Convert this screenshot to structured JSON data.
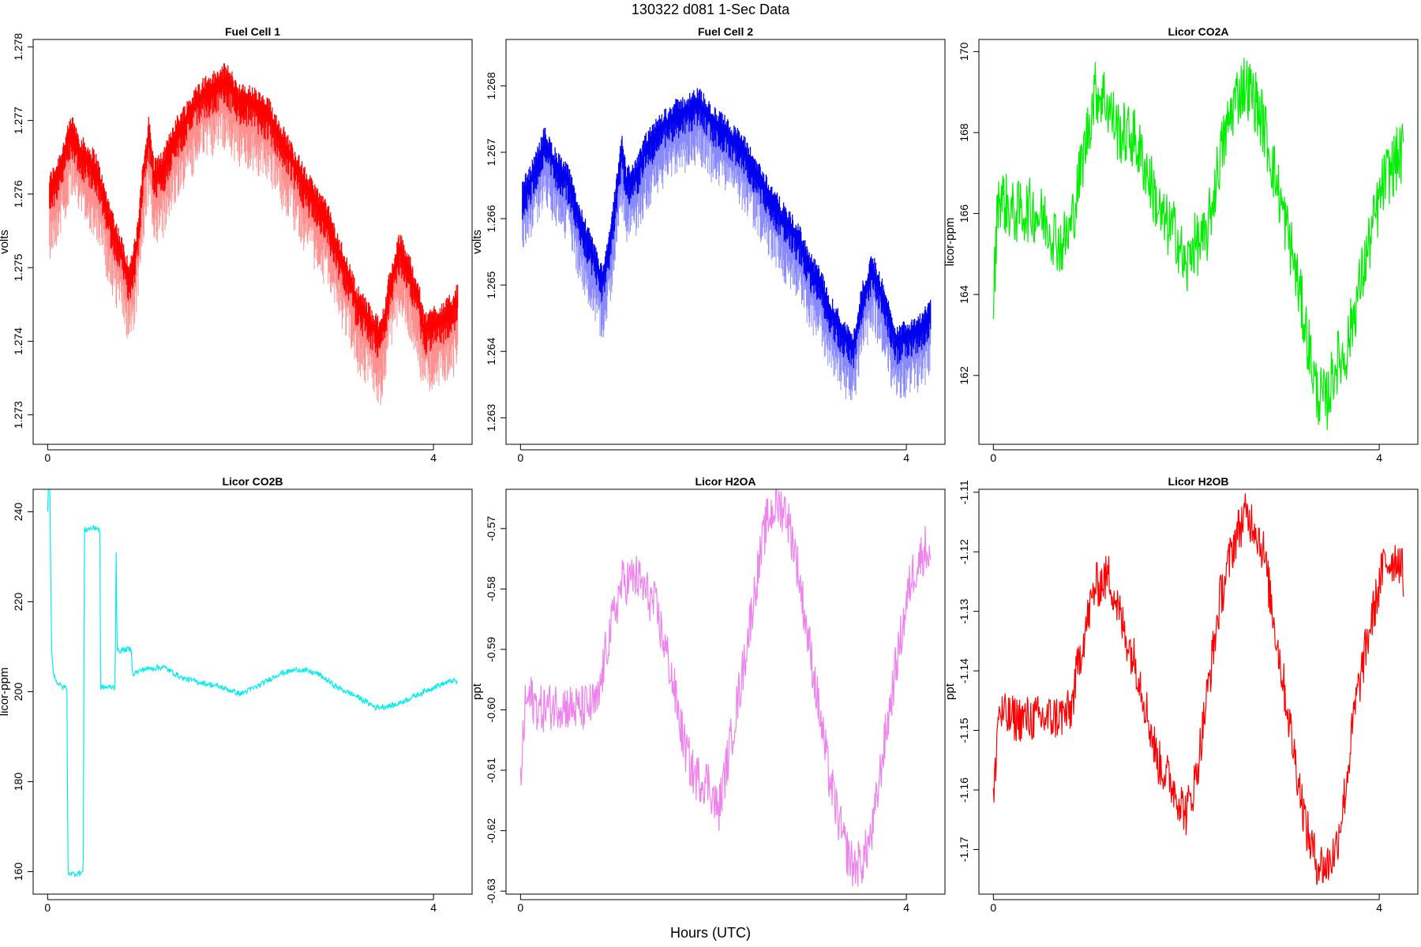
{
  "figure": {
    "title": "130322   d081   1-Sec Data",
    "xlabel": "Hours (UTC)"
  },
  "chart_data": [
    {
      "type": "line",
      "title": "Fuel Cell 1",
      "xlabel": "",
      "ylabel": "volts",
      "xlim": [
        -0.15,
        4.4
      ],
      "ylim": [
        1.2726,
        1.2781
      ],
      "xticks": [
        0,
        4
      ],
      "yticks": [
        1.273,
        1.274,
        1.275,
        1.276,
        1.277,
        1.278
      ],
      "ytick_labels": [
        "1.273",
        "1.274",
        "1.275",
        "1.276",
        "1.277",
        "1.278"
      ],
      "series": [
        {
          "color": "#ff0000",
          "noise_color": "#ff9090",
          "x": [
            0.02,
            0.1,
            0.25,
            0.35,
            0.5,
            0.6,
            0.75,
            0.85,
            0.92,
            1.0,
            1.05,
            1.1,
            1.2,
            1.3,
            1.45,
            1.6,
            1.75,
            1.85,
            2.0,
            2.1,
            2.3,
            2.5,
            2.7,
            2.9,
            3.0,
            3.1,
            3.2,
            3.35,
            3.45,
            3.55,
            3.65,
            3.75,
            3.85,
            3.9,
            4.0,
            4.15,
            4.25
          ],
          "y": [
            1.276,
            1.2762,
            1.2768,
            1.2765,
            1.2763,
            1.2758,
            1.2752,
            1.2748,
            1.2752,
            1.2763,
            1.2768,
            1.2762,
            1.2763,
            1.2767,
            1.277,
            1.2773,
            1.2774,
            1.2775,
            1.2772,
            1.2772,
            1.277,
            1.2765,
            1.276,
            1.2756,
            1.2752,
            1.2749,
            1.2745,
            1.2742,
            1.274,
            1.2747,
            1.2752,
            1.2749,
            1.2745,
            1.2741,
            1.2742,
            1.2743,
            1.2745
          ],
          "noise_down": 0.0009,
          "noise_up": 0.0003
        }
      ]
    },
    {
      "type": "line",
      "title": "Fuel Cell 2",
      "xlabel": "",
      "ylabel": "volts",
      "xlim": [
        -0.15,
        4.4
      ],
      "ylim": [
        1.2626,
        1.2687
      ],
      "xticks": [
        0,
        4
      ],
      "yticks": [
        1.263,
        1.264,
        1.265,
        1.266,
        1.267,
        1.268
      ],
      "ytick_labels": [
        "1.263",
        "1.264",
        "1.265",
        "1.266",
        "1.267",
        "1.268"
      ],
      "series": [
        {
          "color": "#0000ee",
          "noise_color": "#8a8aff",
          "x": [
            0.02,
            0.1,
            0.25,
            0.35,
            0.5,
            0.6,
            0.75,
            0.85,
            0.92,
            1.0,
            1.05,
            1.1,
            1.2,
            1.3,
            1.45,
            1.6,
            1.75,
            1.85,
            2.0,
            2.1,
            2.3,
            2.5,
            2.7,
            2.9,
            3.0,
            3.1,
            3.2,
            3.35,
            3.45,
            3.55,
            3.65,
            3.75,
            3.85,
            3.9,
            4.0,
            4.15,
            4.25
          ],
          "y": [
            1.2663,
            1.2665,
            1.2671,
            1.2668,
            1.2665,
            1.266,
            1.2654,
            1.265,
            1.2655,
            1.2664,
            1.267,
            1.2665,
            1.2666,
            1.267,
            1.2673,
            1.2675,
            1.2676,
            1.2677,
            1.2674,
            1.2673,
            1.267,
            1.2665,
            1.266,
            1.2656,
            1.2652,
            1.265,
            1.2646,
            1.2642,
            1.264,
            1.2648,
            1.2652,
            1.2648,
            1.2643,
            1.2641,
            1.2642,
            1.2643,
            1.2645
          ],
          "noise_down": 0.0009,
          "noise_up": 0.0003
        }
      ]
    },
    {
      "type": "line",
      "title": "Licor CO2A",
      "xlabel": "",
      "ylabel": "licor-ppm",
      "xlim": [
        -0.15,
        4.4
      ],
      "ylim": [
        160.3,
        170.3
      ],
      "xticks": [
        0,
        4
      ],
      "yticks": [
        162,
        164,
        166,
        168,
        170
      ],
      "ytick_labels": [
        "162",
        "164",
        "166",
        "168",
        "170"
      ],
      "series": [
        {
          "color": "#00ee00",
          "x": [
            0.0,
            0.05,
            0.2,
            0.4,
            0.55,
            0.7,
            0.8,
            0.9,
            1.05,
            1.15,
            1.3,
            1.45,
            1.6,
            1.75,
            1.9,
            2.0,
            2.05,
            2.2,
            2.35,
            2.5,
            2.6,
            2.7,
            2.8,
            2.95,
            3.1,
            3.25,
            3.35,
            3.45,
            3.55,
            3.65,
            3.75,
            3.9,
            4.05,
            4.2,
            4.25
          ],
          "y": [
            163.8,
            166.5,
            166.0,
            166.1,
            165.8,
            165.2,
            165.6,
            167.0,
            169.0,
            168.9,
            168.0,
            167.9,
            167.0,
            165.8,
            165.5,
            164.5,
            165.2,
            165.3,
            167.4,
            168.8,
            169.2,
            168.9,
            168.2,
            166.6,
            165.0,
            163.0,
            161.6,
            161.3,
            162.3,
            162.5,
            163.7,
            165.3,
            166.8,
            167.4,
            167.5
          ],
          "noise": 0.8
        }
      ]
    },
    {
      "type": "line",
      "title": "Licor CO2B",
      "xlabel": "",
      "ylabel": "licor-ppm",
      "xlim": [
        -0.15,
        4.4
      ],
      "ylim": [
        155,
        245
      ],
      "xticks": [
        0,
        4
      ],
      "yticks": [
        160,
        180,
        200,
        220,
        240
      ],
      "ytick_labels": [
        "160",
        "180",
        "200",
        "220",
        "240"
      ],
      "series": [
        {
          "color": "#00eeee",
          "x": [
            0.0,
            0.02,
            0.04,
            0.06,
            0.1,
            0.15,
            0.2,
            0.21,
            0.25,
            0.35,
            0.37,
            0.38,
            0.5,
            0.54,
            0.55,
            0.65,
            0.7,
            0.71,
            0.72,
            0.85,
            0.87,
            0.88,
            1.0,
            1.2,
            1.4,
            1.6,
            1.8,
            2.0,
            2.2,
            2.4,
            2.6,
            2.8,
            3.0,
            3.2,
            3.4,
            3.6,
            3.8,
            4.0,
            4.2,
            4.25
          ],
          "y": [
            240,
            252,
            210,
            204,
            202,
            201,
            201,
            160,
            159.5,
            159.8,
            160,
            236,
            236.5,
            236,
            201,
            201,
            201,
            232,
            209,
            209.5,
            209,
            204,
            205,
            205.5,
            203,
            202,
            201,
            199.5,
            201.5,
            204,
            205,
            204,
            201,
            199,
            196.5,
            197,
            199,
            201,
            202.5,
            202
          ],
          "noise": 0.6
        }
      ]
    },
    {
      "type": "line",
      "title": "Licor H2OA",
      "xlabel": "",
      "ylabel": "ppt",
      "xlim": [
        -0.15,
        4.4
      ],
      "ylim": [
        -0.6305,
        -0.5635
      ],
      "xticks": [
        0,
        4
      ],
      "yticks": [
        -0.63,
        -0.62,
        -0.61,
        -0.6,
        -0.59,
        -0.58,
        -0.57
      ],
      "ytick_labels": [
        "-0.63",
        "-0.62",
        "-0.61",
        "-0.60",
        "-0.59",
        "-0.58",
        "-0.57"
      ],
      "series": [
        {
          "color": "#ee82ee",
          "x": [
            0.0,
            0.05,
            0.1,
            0.2,
            0.4,
            0.6,
            0.8,
            0.9,
            1.05,
            1.2,
            1.4,
            1.55,
            1.7,
            1.8,
            1.95,
            2.05,
            2.15,
            2.3,
            2.45,
            2.55,
            2.65,
            2.75,
            2.85,
            3.0,
            3.2,
            3.35,
            3.45,
            3.55,
            3.65,
            3.75,
            3.9,
            4.05,
            4.2,
            4.25
          ],
          "y": [
            -0.612,
            -0.599,
            -0.598,
            -0.6,
            -0.599,
            -0.6,
            -0.599,
            -0.589,
            -0.579,
            -0.578,
            -0.583,
            -0.593,
            -0.606,
            -0.611,
            -0.612,
            -0.617,
            -0.608,
            -0.594,
            -0.578,
            -0.569,
            -0.566,
            -0.567,
            -0.574,
            -0.59,
            -0.611,
            -0.622,
            -0.626,
            -0.625,
            -0.62,
            -0.608,
            -0.592,
            -0.578,
            -0.573,
            -0.575
          ],
          "noise": 0.004
        }
      ]
    },
    {
      "type": "line",
      "title": "Licor H2OB",
      "xlabel": "",
      "ylabel": "ppt",
      "xlim": [
        -0.15,
        4.4
      ],
      "ylim": [
        -1.1775,
        -1.1095
      ],
      "xticks": [
        0,
        4
      ],
      "yticks": [
        -1.17,
        -1.16,
        -1.15,
        -1.14,
        -1.13,
        -1.12,
        -1.11
      ],
      "ytick_labels": [
        "-1.17",
        "-1.16",
        "-1.15",
        "-1.14",
        "-1.13",
        "-1.12",
        "-1.11"
      ],
      "series": [
        {
          "color": "#ff0000",
          "x": [
            0.0,
            0.05,
            0.15,
            0.4,
            0.6,
            0.8,
            0.9,
            1.05,
            1.2,
            1.35,
            1.5,
            1.7,
            1.85,
            2.0,
            2.1,
            2.2,
            2.35,
            2.5,
            2.6,
            2.7,
            2.8,
            2.95,
            3.1,
            3.25,
            3.35,
            3.45,
            3.55,
            3.65,
            3.75,
            3.9,
            4.05,
            4.2,
            4.25
          ],
          "y": [
            -1.163,
            -1.147,
            -1.148,
            -1.148,
            -1.148,
            -1.147,
            -1.137,
            -1.126,
            -1.124,
            -1.133,
            -1.14,
            -1.155,
            -1.159,
            -1.164,
            -1.158,
            -1.146,
            -1.128,
            -1.118,
            -1.114,
            -1.115,
            -1.12,
            -1.136,
            -1.152,
            -1.167,
            -1.172,
            -1.173,
            -1.17,
            -1.16,
            -1.146,
            -1.133,
            -1.122,
            -1.121,
            -1.124
          ],
          "noise": 0.004
        }
      ]
    }
  ]
}
